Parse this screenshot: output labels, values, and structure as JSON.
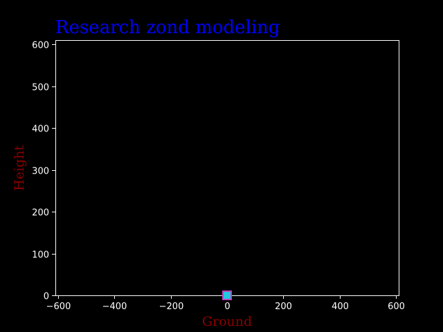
{
  "chart_data": {
    "type": "scatter",
    "title": "Research zond modeling",
    "xlabel": "Ground",
    "ylabel": "Height",
    "xlim": [
      -610,
      610
    ],
    "ylim": [
      0,
      610
    ],
    "x_ticks": [
      -600,
      -400,
      -200,
      0,
      200,
      400,
      600
    ],
    "x_tick_labels": [
      "−600",
      "−400",
      "−200",
      "0",
      "200",
      "400",
      "600"
    ],
    "y_ticks": [
      0,
      100,
      200,
      300,
      400,
      500,
      600
    ],
    "y_tick_labels": [
      "0",
      "100",
      "200",
      "300",
      "400",
      "500",
      "600"
    ],
    "grid": false,
    "points": [
      {
        "x": 0,
        "y": 0
      }
    ],
    "colors": {
      "background": "#000000",
      "axes": "#ffffff",
      "title": "#0000ff",
      "axis_label": "#8b0000",
      "marker_fill": "#20c8e0",
      "marker_edge": "#c040c0"
    }
  }
}
